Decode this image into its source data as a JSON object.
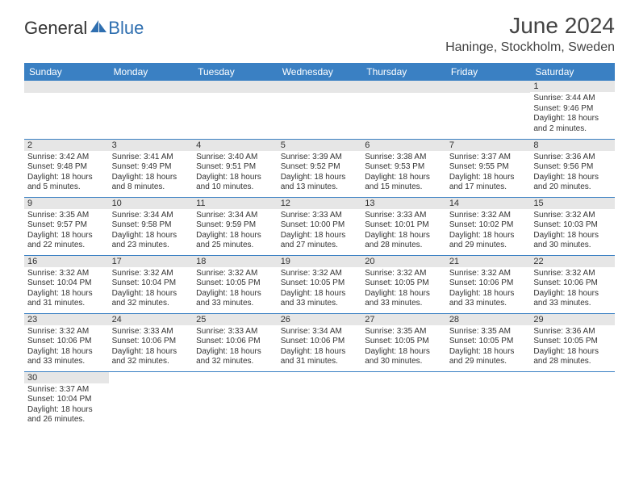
{
  "logo": {
    "part1": "General",
    "part2": "Blue"
  },
  "title": "June 2024",
  "location": "Haninge, Stockholm, Sweden",
  "colors": {
    "header_bg": "#3a80c3",
    "header_text": "#ffffff",
    "daynum_bg": "#e6e6e6",
    "border": "#3a80c3",
    "logo_blue": "#2f6fb0"
  },
  "weekdays": [
    "Sunday",
    "Monday",
    "Tuesday",
    "Wednesday",
    "Thursday",
    "Friday",
    "Saturday"
  ],
  "grid": {
    "first_day_index": 6,
    "days_in_month": 30
  },
  "days": {
    "1": {
      "sunrise": "3:44 AM",
      "sunset": "9:46 PM",
      "daylight": "18 hours and 2 minutes."
    },
    "2": {
      "sunrise": "3:42 AM",
      "sunset": "9:48 PM",
      "daylight": "18 hours and 5 minutes."
    },
    "3": {
      "sunrise": "3:41 AM",
      "sunset": "9:49 PM",
      "daylight": "18 hours and 8 minutes."
    },
    "4": {
      "sunrise": "3:40 AM",
      "sunset": "9:51 PM",
      "daylight": "18 hours and 10 minutes."
    },
    "5": {
      "sunrise": "3:39 AM",
      "sunset": "9:52 PM",
      "daylight": "18 hours and 13 minutes."
    },
    "6": {
      "sunrise": "3:38 AM",
      "sunset": "9:53 PM",
      "daylight": "18 hours and 15 minutes."
    },
    "7": {
      "sunrise": "3:37 AM",
      "sunset": "9:55 PM",
      "daylight": "18 hours and 17 minutes."
    },
    "8": {
      "sunrise": "3:36 AM",
      "sunset": "9:56 PM",
      "daylight": "18 hours and 20 minutes."
    },
    "9": {
      "sunrise": "3:35 AM",
      "sunset": "9:57 PM",
      "daylight": "18 hours and 22 minutes."
    },
    "10": {
      "sunrise": "3:34 AM",
      "sunset": "9:58 PM",
      "daylight": "18 hours and 23 minutes."
    },
    "11": {
      "sunrise": "3:34 AM",
      "sunset": "9:59 PM",
      "daylight": "18 hours and 25 minutes."
    },
    "12": {
      "sunrise": "3:33 AM",
      "sunset": "10:00 PM",
      "daylight": "18 hours and 27 minutes."
    },
    "13": {
      "sunrise": "3:33 AM",
      "sunset": "10:01 PM",
      "daylight": "18 hours and 28 minutes."
    },
    "14": {
      "sunrise": "3:32 AM",
      "sunset": "10:02 PM",
      "daylight": "18 hours and 29 minutes."
    },
    "15": {
      "sunrise": "3:32 AM",
      "sunset": "10:03 PM",
      "daylight": "18 hours and 30 minutes."
    },
    "16": {
      "sunrise": "3:32 AM",
      "sunset": "10:04 PM",
      "daylight": "18 hours and 31 minutes."
    },
    "17": {
      "sunrise": "3:32 AM",
      "sunset": "10:04 PM",
      "daylight": "18 hours and 32 minutes."
    },
    "18": {
      "sunrise": "3:32 AM",
      "sunset": "10:05 PM",
      "daylight": "18 hours and 33 minutes."
    },
    "19": {
      "sunrise": "3:32 AM",
      "sunset": "10:05 PM",
      "daylight": "18 hours and 33 minutes."
    },
    "20": {
      "sunrise": "3:32 AM",
      "sunset": "10:05 PM",
      "daylight": "18 hours and 33 minutes."
    },
    "21": {
      "sunrise": "3:32 AM",
      "sunset": "10:06 PM",
      "daylight": "18 hours and 33 minutes."
    },
    "22": {
      "sunrise": "3:32 AM",
      "sunset": "10:06 PM",
      "daylight": "18 hours and 33 minutes."
    },
    "23": {
      "sunrise": "3:32 AM",
      "sunset": "10:06 PM",
      "daylight": "18 hours and 33 minutes."
    },
    "24": {
      "sunrise": "3:33 AM",
      "sunset": "10:06 PM",
      "daylight": "18 hours and 32 minutes."
    },
    "25": {
      "sunrise": "3:33 AM",
      "sunset": "10:06 PM",
      "daylight": "18 hours and 32 minutes."
    },
    "26": {
      "sunrise": "3:34 AM",
      "sunset": "10:06 PM",
      "daylight": "18 hours and 31 minutes."
    },
    "27": {
      "sunrise": "3:35 AM",
      "sunset": "10:05 PM",
      "daylight": "18 hours and 30 minutes."
    },
    "28": {
      "sunrise": "3:35 AM",
      "sunset": "10:05 PM",
      "daylight": "18 hours and 29 minutes."
    },
    "29": {
      "sunrise": "3:36 AM",
      "sunset": "10:05 PM",
      "daylight": "18 hours and 28 minutes."
    },
    "30": {
      "sunrise": "3:37 AM",
      "sunset": "10:04 PM",
      "daylight": "18 hours and 26 minutes."
    }
  },
  "labels": {
    "sunrise": "Sunrise: ",
    "sunset": "Sunset: ",
    "daylight": "Daylight: "
  }
}
